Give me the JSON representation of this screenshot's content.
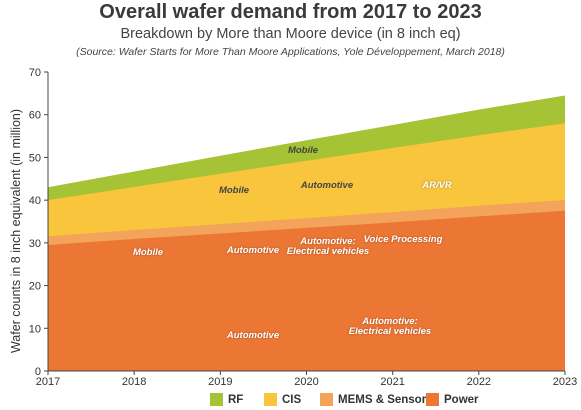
{
  "header": {
    "title": "Overall wafer demand from 2017 to 2023",
    "subtitle": "Breakdown by More than Moore device (in 8 inch eq)",
    "source": "(Source: Wafer Starts for More Than Moore Applications, Yole Développement, March 2018)"
  },
  "chart_data": {
    "type": "area",
    "stacked": true,
    "x": [
      2017,
      2018,
      2019,
      2020,
      2021,
      2022,
      2023
    ],
    "xlim": [
      2017,
      2023
    ],
    "ylim": [
      0,
      70
    ],
    "ylabel": "Wafer counts in 8 inch equivalent (in million)",
    "xlabel": "",
    "y_ticks": [
      0,
      10,
      20,
      30,
      40,
      50,
      60,
      70
    ],
    "x_ticks": [
      "2017",
      "2018",
      "2019",
      "2020",
      "2021",
      "2022",
      "2023"
    ],
    "grid": false,
    "legend_position": "bottom",
    "series": [
      {
        "name": "Power",
        "color": "#ec7634",
        "values": [
          29.5,
          30.9,
          32.2,
          33.5,
          34.8,
          36.2,
          37.5
        ]
      },
      {
        "name": "MEMS & Sensors",
        "color": "#f3a35a",
        "values": [
          2.0,
          2.1,
          2.2,
          2.3,
          2.4,
          2.5,
          2.5
        ]
      },
      {
        "name": "CIS",
        "color": "#f8c53c",
        "values": [
          8.5,
          10.1,
          11.8,
          13.4,
          15.0,
          16.5,
          18.0
        ]
      },
      {
        "name": "RF",
        "color": "#a5c334",
        "values": [
          3.0,
          3.6,
          4.2,
          4.8,
          5.4,
          6.0,
          6.5
        ]
      }
    ],
    "annotations": [
      {
        "label": "Mobile",
        "series": "RF"
      },
      {
        "label": "Mobile",
        "series": "CIS"
      },
      {
        "label": "Mobile",
        "series": "MEMS & Sensors"
      },
      {
        "label": "Automotive",
        "series": "CIS"
      },
      {
        "label": "AR/VR",
        "series": "CIS"
      },
      {
        "label": "Automotive",
        "series": "MEMS & Sensors"
      },
      {
        "label": "Automotive:\nElectrical vehicles",
        "series": "MEMS & Sensors"
      },
      {
        "label": "Voice Processing",
        "series": "MEMS & Sensors"
      },
      {
        "label": "Automotive",
        "series": "Power"
      },
      {
        "label": "Automotive:\nElectrical vehicles",
        "series": "Power"
      }
    ]
  },
  "legend": [
    {
      "label": "RF",
      "color": "#a5c334"
    },
    {
      "label": "CIS",
      "color": "#f8c53c"
    },
    {
      "label": "MEMS & Sensors",
      "color": "#f3a35a"
    },
    {
      "label": "Power",
      "color": "#ec7634"
    }
  ]
}
